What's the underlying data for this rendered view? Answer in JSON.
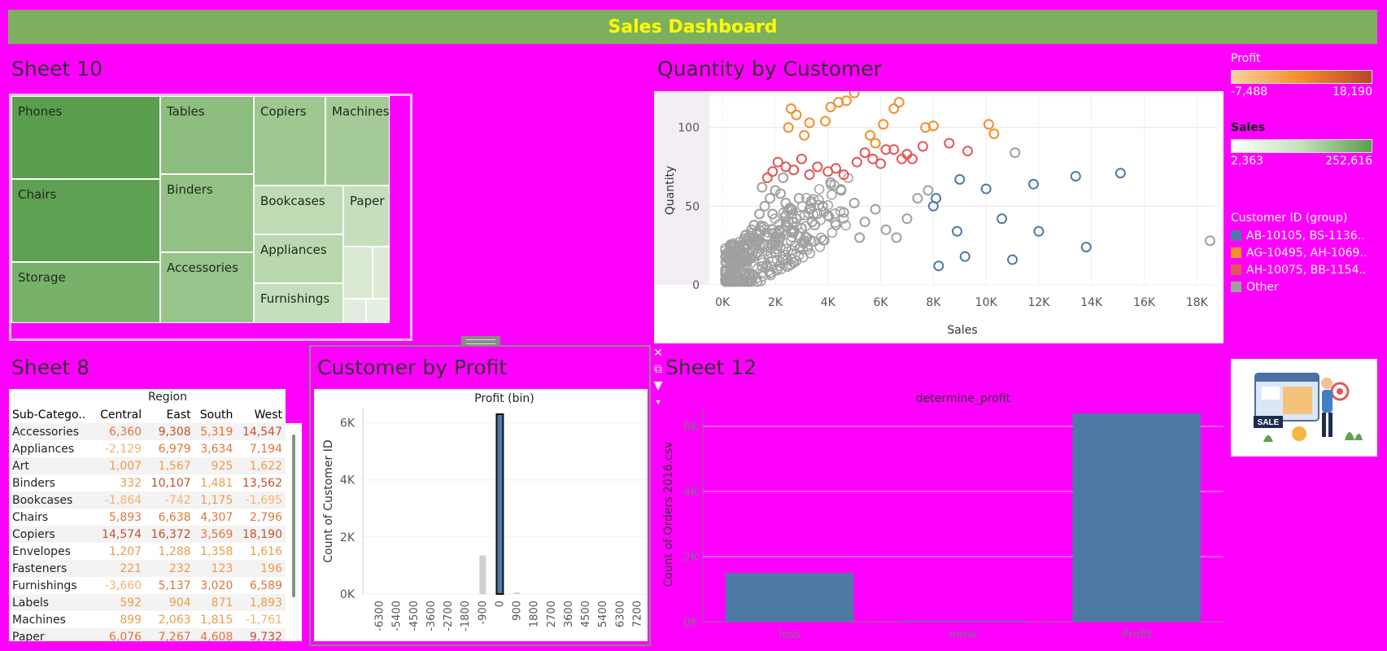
{
  "dashboard": {
    "title": "Sales Dashboard"
  },
  "treemap": {
    "title": "Sheet 10",
    "tiles": [
      {
        "label": "Phones",
        "color": "#5a9e4e"
      },
      {
        "label": "Chairs",
        "color": "#5fa153"
      },
      {
        "label": "Storage",
        "color": "#78b16a"
      },
      {
        "label": "Tables",
        "color": "#8dbd7f"
      },
      {
        "label": "Binders",
        "color": "#93c185"
      },
      {
        "label": "Accessories",
        "color": "#98c48b"
      },
      {
        "label": "Copiers",
        "color": "#9ec890"
      },
      {
        "label": "Machines",
        "color": "#a4cb97"
      },
      {
        "label": "Bookcases",
        "color": "#bedbb3"
      },
      {
        "label": "Appliances",
        "color": "#b9d8ae"
      },
      {
        "label": "Furnishings",
        "color": "#c4dfbb"
      },
      {
        "label": "Paper",
        "color": "#c5dfbc"
      }
    ]
  },
  "scatter": {
    "title": "Quantity by Customer",
    "xlabel": "Sales",
    "ylabel": "Quantity",
    "x_ticks": [
      "0K",
      "2K",
      "4K",
      "6K",
      "8K",
      "10K",
      "12K",
      "14K",
      "16K",
      "18K"
    ],
    "y_ticks": [
      "0",
      "50",
      "100"
    ]
  },
  "legends": {
    "profit": {
      "title": "Profit",
      "min": "-7,488",
      "max": "18,190"
    },
    "sales": {
      "title": "Sales",
      "min": "2,363",
      "max": "252,616"
    },
    "customer_group": {
      "title": "Customer ID (group)",
      "items": [
        {
          "label": "AB-10105, BS-1136..",
          "color": "#4e79a7"
        },
        {
          "label": "AG-10495, AH-1069..",
          "color": "#f28e2b"
        },
        {
          "label": "AH-10075, BB-1154..",
          "color": "#e15759"
        },
        {
          "label": "Other",
          "color": "#a0a0a0"
        }
      ]
    }
  },
  "crosstab": {
    "title": "Sheet 8",
    "region_header": "Region",
    "row_header": "Sub-Catego..",
    "columns": [
      "Central",
      "East",
      "South",
      "West"
    ],
    "rows": [
      {
        "name": "Accessories",
        "values": [
          "6,360",
          "9,308",
          "5,319",
          "14,547"
        ]
      },
      {
        "name": "Appliances",
        "values": [
          "-2,129",
          "6,979",
          "3,634",
          "7,194"
        ]
      },
      {
        "name": "Art",
        "values": [
          "1,007",
          "1,567",
          "925",
          "1,622"
        ]
      },
      {
        "name": "Binders",
        "values": [
          "332",
          "10,107",
          "1,481",
          "13,562"
        ]
      },
      {
        "name": "Bookcases",
        "values": [
          "-1,864",
          "-742",
          "1,175",
          "-1,695"
        ]
      },
      {
        "name": "Chairs",
        "values": [
          "5,893",
          "6,638",
          "4,307",
          "2,796"
        ]
      },
      {
        "name": "Copiers",
        "values": [
          "14,574",
          "16,372",
          "3,569",
          "18,190"
        ]
      },
      {
        "name": "Envelopes",
        "values": [
          "1,207",
          "1,288",
          "1,358",
          "1,616"
        ]
      },
      {
        "name": "Fasteners",
        "values": [
          "221",
          "232",
          "123",
          "196"
        ]
      },
      {
        "name": "Furnishings",
        "values": [
          "-3,660",
          "5,137",
          "3,020",
          "6,589"
        ]
      },
      {
        "name": "Labels",
        "values": [
          "592",
          "904",
          "871",
          "1,893"
        ]
      },
      {
        "name": "Machines",
        "values": [
          "899",
          "2,063",
          "1,815",
          "-1,761"
        ]
      },
      {
        "name": "Paper",
        "values": [
          "6,076",
          "7,267",
          "4,608",
          "9,732"
        ]
      }
    ]
  },
  "histogram": {
    "title": "Customer by Profit",
    "header": "Profit (bin)",
    "ylabel": "Count of Customer ID",
    "y_ticks": [
      "0K",
      "2K",
      "4K",
      "6K"
    ],
    "x_ticks": [
      "-6300",
      "-5400",
      "-4500",
      "-3600",
      "-2700",
      "-1800",
      "-900",
      "0",
      "900",
      "1800",
      "2700",
      "3600",
      "4500",
      "5400",
      "6300",
      "7200"
    ]
  },
  "sheet12": {
    "title": "Sheet 12",
    "header": "determine_profit",
    "ylabel": "Count of Orders 2016.csv",
    "y_ticks": [
      "0K",
      "2K",
      "4K",
      "6K"
    ],
    "categories": [
      "loss",
      "none",
      "Profit"
    ]
  },
  "chart_data": [
    {
      "type": "bar",
      "title": "Customer by Profit",
      "xlabel": "Profit (bin)",
      "ylabel": "Count of Customer ID",
      "categories": [
        "-900",
        "0",
        "900"
      ],
      "values": [
        1350,
        6300,
        50
      ],
      "ylim": [
        0,
        6500
      ]
    },
    {
      "type": "bar",
      "title": "Sheet 12",
      "xlabel": "determine_profit",
      "ylabel": "Count of Orders 2016.csv",
      "categories": [
        "loss",
        "none",
        "Profit"
      ],
      "values": [
        1500,
        30,
        6400
      ],
      "ylim": [
        0,
        6600
      ]
    },
    {
      "type": "scatter",
      "title": "Quantity by Customer",
      "xlabel": "Sales",
      "ylabel": "Quantity",
      "xlim": [
        -500,
        18700
      ],
      "ylim": [
        0,
        120
      ],
      "series": [
        {
          "name": "AB-10105, BS-1136..",
          "color": "#4e79a7",
          "x": [
            8100,
            8000,
            8200,
            9000,
            8900,
            9200,
            10000,
            10600,
            11000,
            11800,
            12000,
            13400,
            13800,
            15100
          ],
          "y": [
            55,
            50,
            12,
            67,
            34,
            18,
            61,
            42,
            16,
            64,
            34,
            69,
            24,
            71
          ]
        },
        {
          "name": "AG-10495, AH-1069..",
          "color": "#f28e2b",
          "x": [
            2500,
            2600,
            2800,
            3100,
            3300,
            3900,
            4100,
            4400,
            4700,
            5000,
            5600,
            5800,
            6100,
            6500,
            6700,
            7700,
            8000,
            10100,
            10300
          ],
          "y": [
            100,
            112,
            108,
            95,
            103,
            104,
            113,
            116,
            117,
            122,
            95,
            90,
            102,
            112,
            116,
            100,
            101,
            102,
            96
          ]
        },
        {
          "name": "AH-10075, BB-1154..",
          "color": "#e15759",
          "x": [
            1700,
            1900,
            2100,
            2400,
            2700,
            3000,
            3300,
            3600,
            4000,
            4300,
            4600,
            5100,
            5400,
            5700,
            6000,
            6200,
            6500,
            6800,
            7000,
            7200,
            7600,
            8600,
            9300
          ],
          "y": [
            68,
            72,
            78,
            75,
            73,
            80,
            70,
            75,
            72,
            74,
            70,
            78,
            84,
            80,
            77,
            86,
            86,
            80,
            83,
            80,
            88,
            90,
            85
          ]
        },
        {
          "name": "Other",
          "color": "#a0a0a0",
          "x": [
            200,
            400,
            600,
            800,
            1000,
            1200,
            1400,
            1600,
            1800,
            2000,
            2200,
            2400,
            2600,
            2800,
            3000,
            3200,
            3400,
            3600,
            3800,
            4000,
            4300,
            4600,
            5000,
            5400,
            5800,
            6200,
            6600,
            7000,
            7400,
            7800,
            300,
            500,
            700,
            900,
            1100,
            1300,
            1500,
            1700,
            1900,
            2100,
            2300,
            2500,
            2700,
            2900,
            3100,
            3300,
            3500,
            4100,
            4500,
            5200,
            11100,
            18500
          ],
          "y": [
            5,
            12,
            18,
            25,
            30,
            38,
            45,
            50,
            55,
            60,
            58,
            52,
            48,
            42,
            36,
            30,
            40,
            45,
            50,
            44,
            38,
            46,
            52,
            40,
            48,
            35,
            30,
            42,
            55,
            60,
            8,
            14,
            22,
            28,
            35,
            20,
            62,
            30,
            45,
            25,
            68,
            40,
            34,
            55,
            28,
            48,
            38,
            65,
            60,
            30,
            84,
            28
          ]
        }
      ]
    },
    {
      "type": "treemap",
      "title": "Sheet 10",
      "categories": [
        "Phones",
        "Chairs",
        "Storage",
        "Tables",
        "Binders",
        "Accessories",
        "Copiers",
        "Machines",
        "Bookcases",
        "Appliances",
        "Furnishings",
        "Paper"
      ]
    }
  ]
}
